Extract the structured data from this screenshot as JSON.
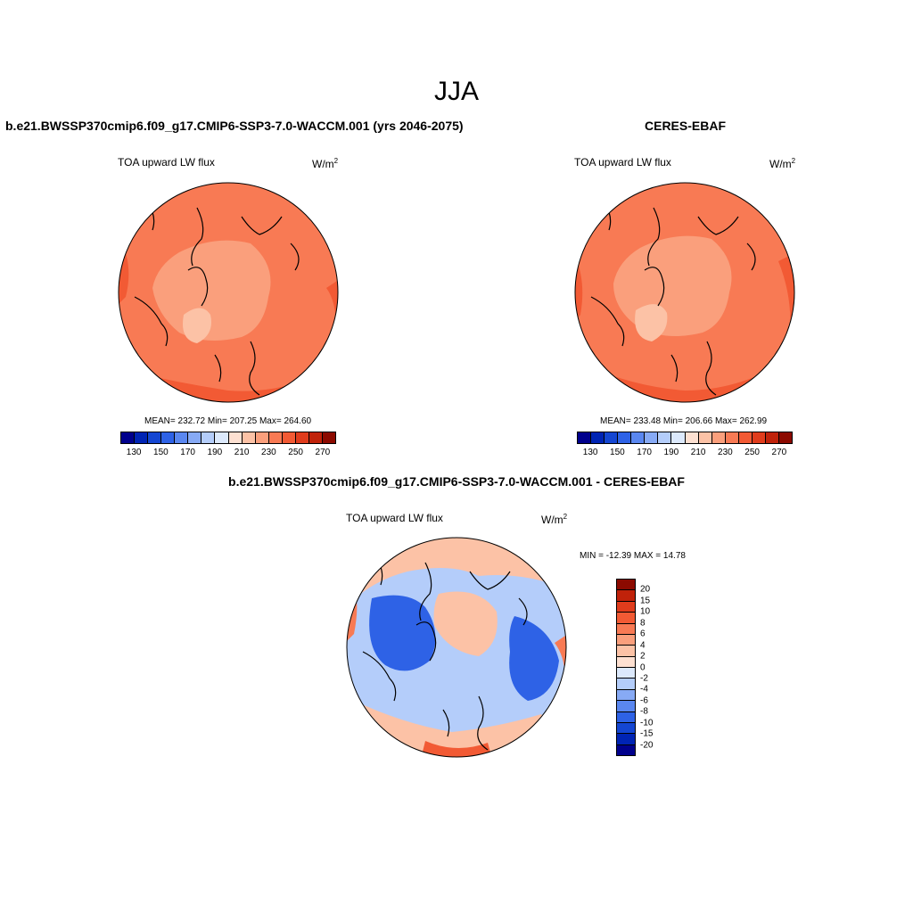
{
  "title": "JJA",
  "panels": {
    "model": {
      "case": "b.e21.BWSSP370cmip6.f09_g17.CMIP6-SSP3-7.0-WACCM.001 (yrs 2046-2075)",
      "variable": "TOA upward LW flux",
      "units_base": "W/m",
      "units_exp": "2",
      "stats": "MEAN= 232.72  Min= 207.25  Max= 264.60"
    },
    "obs": {
      "case": "CERES-EBAF",
      "variable": "TOA upward LW flux",
      "units_base": "W/m",
      "units_exp": "2",
      "stats": "MEAN= 233.48  Min= 206.66  Max= 262.99"
    },
    "diff": {
      "case": "b.e21.BWSSP370cmip6.f09_g17.CMIP6-SSP3-7.0-WACCM.001 - CERES-EBAF",
      "variable": "TOA upward LW flux",
      "units_base": "W/m",
      "units_exp": "2",
      "stats": "MIN = -12.39 MAX =  14.78"
    }
  },
  "colorbar_abs": {
    "colors": [
      "#00008c",
      "#0024b4",
      "#1446d2",
      "#2e62e6",
      "#5a87f0",
      "#87aaf5",
      "#b4cdfa",
      "#dce9fc",
      "#fde0d1",
      "#fcc2a6",
      "#fa9f7c",
      "#f87a54",
      "#f25a34",
      "#e03c1c",
      "#c0220a",
      "#8c0a00"
    ],
    "tick_labels": [
      "130",
      "150",
      "170",
      "190",
      "210",
      "230",
      "250",
      "270"
    ]
  },
  "colorbar_diff": {
    "colors": [
      "#8c0a00",
      "#c0220a",
      "#e03c1c",
      "#f25a34",
      "#f87a54",
      "#fa9f7c",
      "#fcc2a6",
      "#fde0d1",
      "#dce9fc",
      "#b4cdfa",
      "#87aaf5",
      "#5a87f0",
      "#2e62e6",
      "#1446d2",
      "#0024b4",
      "#00008c"
    ],
    "tick_labels": [
      "20",
      "15",
      "10",
      "8",
      "6",
      "4",
      "2",
      "0",
      "-2",
      "-4",
      "-6",
      "-8",
      "-10",
      "-15",
      "-20"
    ]
  }
}
